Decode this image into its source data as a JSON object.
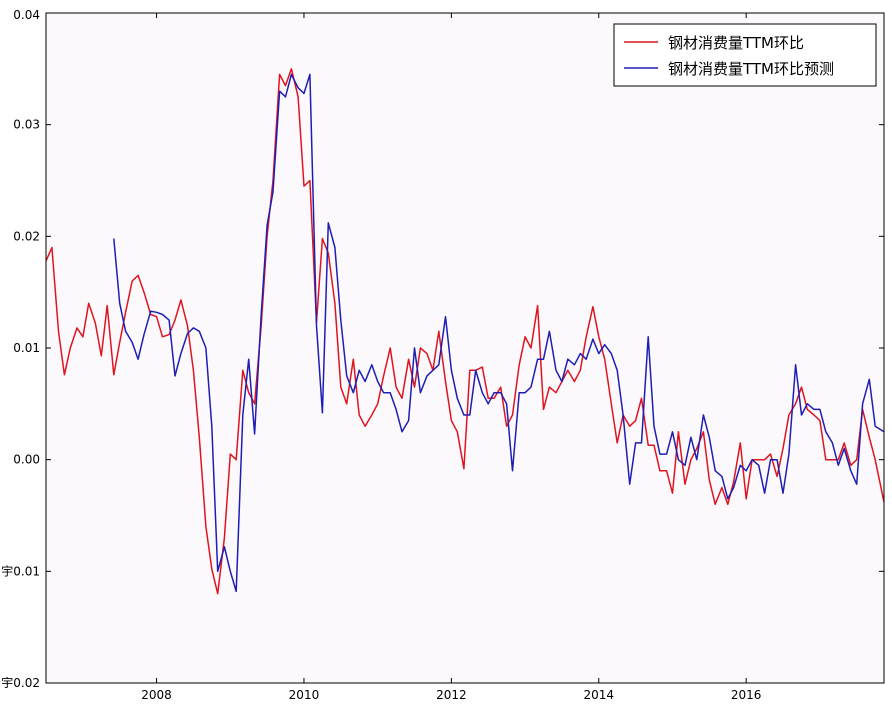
{
  "chart_data": {
    "type": "line",
    "title": "",
    "xlabel": "",
    "ylabel": "",
    "xlim": [
      2006.5,
      2017.87
    ],
    "ylim": [
      -0.02,
      0.04
    ],
    "xticks": [
      2008,
      2010,
      2012,
      2014,
      2016
    ],
    "xtick_labels": [
      "2008",
      "2010",
      "2012",
      "2014",
      "2016"
    ],
    "yticks": [
      0.04,
      0.03,
      0.02,
      0.01,
      0.0,
      -0.01,
      -0.02
    ],
    "ytick_labels": [
      "0.04",
      "0.03",
      "0.02",
      "0.01",
      "0.00",
      "宇0.01",
      "宇0.02"
    ],
    "legend_position": "top-right",
    "grid": false,
    "colors": {
      "actual": "#e0141e",
      "predicted": "#1e1eb4",
      "frame": "#000000",
      "plot_background": "#fbf9fc"
    },
    "series": [
      {
        "name": "钢材消费量TTM环比",
        "color": "#e0141e",
        "x": [
          2006.5,
          2006.58,
          2006.67,
          2006.75,
          2006.83,
          2006.92,
          2007.0,
          2007.08,
          2007.17,
          2007.25,
          2007.33,
          2007.42,
          2007.5,
          2007.58,
          2007.67,
          2007.75,
          2007.83,
          2007.92,
          2008.0,
          2008.08,
          2008.17,
          2008.25,
          2008.33,
          2008.42,
          2008.5,
          2008.58,
          2008.67,
          2008.75,
          2008.83,
          2008.92,
          2009.0,
          2009.08,
          2009.17,
          2009.25,
          2009.33,
          2009.42,
          2009.5,
          2009.58,
          2009.67,
          2009.75,
          2009.83,
          2009.92,
          2010.0,
          2010.08,
          2010.17,
          2010.25,
          2010.33,
          2010.42,
          2010.5,
          2010.58,
          2010.67,
          2010.75,
          2010.83,
          2010.92,
          2011.0,
          2011.08,
          2011.17,
          2011.25,
          2011.33,
          2011.42,
          2011.5,
          2011.58,
          2011.67,
          2011.75,
          2011.83,
          2011.92,
          2012.0,
          2012.08,
          2012.17,
          2012.25,
          2012.33,
          2012.42,
          2012.5,
          2012.58,
          2012.67,
          2012.75,
          2012.83,
          2012.92,
          2013.0,
          2013.08,
          2013.17,
          2013.25,
          2013.33,
          2013.42,
          2013.5,
          2013.58,
          2013.67,
          2013.75,
          2013.83,
          2013.92,
          2014.0,
          2014.08,
          2014.17,
          2014.25,
          2014.33,
          2014.42,
          2014.5,
          2014.58,
          2014.67,
          2014.75,
          2014.83,
          2014.92,
          2015.0,
          2015.08,
          2015.17,
          2015.25,
          2015.33,
          2015.42,
          2015.5,
          2015.58,
          2015.67,
          2015.75,
          2015.83,
          2015.92,
          2016.0,
          2016.08,
          2016.17,
          2016.25,
          2016.33,
          2016.42,
          2016.5,
          2016.58,
          2016.67,
          2016.75,
          2016.83,
          2016.92,
          2017.0,
          2017.08,
          2017.17,
          2017.25,
          2017.33,
          2017.42,
          2017.5,
          2017.58,
          2017.67,
          2017.75,
          2017.87
        ],
        "y": [
          0.0178,
          0.019,
          0.0115,
          0.0076,
          0.01,
          0.0118,
          0.011,
          0.014,
          0.0122,
          0.0093,
          0.0138,
          0.0076,
          0.0105,
          0.0132,
          0.016,
          0.0165,
          0.015,
          0.013,
          0.0128,
          0.011,
          0.0112,
          0.0125,
          0.0143,
          0.012,
          0.008,
          0.002,
          -0.006,
          -0.0098,
          -0.012,
          -0.007,
          0.0005,
          0.0,
          0.008,
          0.006,
          0.005,
          0.012,
          0.02,
          0.025,
          0.0345,
          0.0335,
          0.035,
          0.0325,
          0.0245,
          0.025,
          0.0123,
          0.0198,
          0.0185,
          0.014,
          0.0065,
          0.005,
          0.009,
          0.004,
          0.003,
          0.004,
          0.005,
          0.0075,
          0.01,
          0.0065,
          0.0055,
          0.009,
          0.0065,
          0.01,
          0.0095,
          0.008,
          0.0115,
          0.007,
          0.0035,
          0.0025,
          -0.0008,
          0.008,
          0.008,
          0.0083,
          0.0055,
          0.0055,
          0.0065,
          0.003,
          0.004,
          0.0085,
          0.011,
          0.01,
          0.0138,
          0.0045,
          0.0065,
          0.006,
          0.007,
          0.008,
          0.007,
          0.008,
          0.011,
          0.0137,
          0.011,
          0.009,
          0.005,
          0.0015,
          0.004,
          0.003,
          0.0035,
          0.0055,
          0.0013,
          0.0013,
          -0.001,
          -0.001,
          -0.003,
          0.0025,
          -0.0022,
          0.0,
          0.001,
          0.0025,
          -0.0018,
          -0.004,
          -0.0025,
          -0.004,
          -0.002,
          0.0015,
          -0.0035,
          0.0,
          0.0,
          0.0,
          0.0005,
          -0.0015,
          0.001,
          0.004,
          0.005,
          0.0065,
          0.0045,
          0.004,
          0.0035,
          0.0,
          0.0,
          0.0,
          0.0015,
          -0.0005,
          0.0,
          0.0045,
          0.002,
          0.0,
          -0.0038
        ]
      },
      {
        "name": "钢材消费量TTM环比预测",
        "color": "#1e1eb4",
        "x": [
          2007.42,
          2007.5,
          2007.58,
          2007.67,
          2007.75,
          2007.83,
          2007.92,
          2008.0,
          2008.08,
          2008.17,
          2008.25,
          2008.33,
          2008.42,
          2008.5,
          2008.58,
          2008.67,
          2008.75,
          2008.83,
          2008.92,
          2009.0,
          2009.08,
          2009.17,
          2009.25,
          2009.33,
          2009.42,
          2009.5,
          2009.58,
          2009.67,
          2009.75,
          2009.83,
          2009.92,
          2010.0,
          2010.08,
          2010.17,
          2010.25,
          2010.33,
          2010.42,
          2010.5,
          2010.58,
          2010.67,
          2010.75,
          2010.83,
          2010.92,
          2011.0,
          2011.08,
          2011.17,
          2011.25,
          2011.33,
          2011.42,
          2011.5,
          2011.58,
          2011.67,
          2011.75,
          2011.83,
          2011.92,
          2012.0,
          2012.08,
          2012.17,
          2012.25,
          2012.33,
          2012.42,
          2012.5,
          2012.58,
          2012.67,
          2012.75,
          2012.83,
          2012.92,
          2013.0,
          2013.08,
          2013.17,
          2013.25,
          2013.33,
          2013.42,
          2013.5,
          2013.58,
          2013.67,
          2013.75,
          2013.83,
          2013.92,
          2014.0,
          2014.08,
          2014.17,
          2014.25,
          2014.33,
          2014.42,
          2014.5,
          2014.58,
          2014.67,
          2014.75,
          2014.83,
          2014.92,
          2015.0,
          2015.08,
          2015.17,
          2015.25,
          2015.33,
          2015.42,
          2015.5,
          2015.58,
          2015.67,
          2015.75,
          2015.83,
          2015.92,
          2016.0,
          2016.08,
          2016.17,
          2016.25,
          2016.33,
          2016.42,
          2016.5,
          2016.58,
          2016.67,
          2016.75,
          2016.83,
          2016.92,
          2017.0,
          2017.08,
          2017.17,
          2017.25,
          2017.33,
          2017.42,
          2017.5,
          2017.58,
          2017.67,
          2017.75,
          2017.87
        ],
        "y": [
          0.0198,
          0.014,
          0.0115,
          0.0105,
          0.009,
          0.0112,
          0.0133,
          0.0132,
          0.013,
          0.0125,
          0.0075,
          0.0095,
          0.0113,
          0.0118,
          0.0115,
          0.01,
          0.003,
          -0.01,
          -0.0078,
          -0.01,
          -0.0118,
          0.004,
          0.009,
          0.0023,
          0.013,
          0.021,
          0.024,
          0.033,
          0.0325,
          0.0345,
          0.0333,
          0.0328,
          0.0345,
          0.012,
          0.0042,
          0.0212,
          0.019,
          0.0125,
          0.0075,
          0.006,
          0.008,
          0.007,
          0.0085,
          0.007,
          0.006,
          0.006,
          0.0045,
          0.0025,
          0.0035,
          0.01,
          0.006,
          0.0075,
          0.008,
          0.0085,
          0.0128,
          0.008,
          0.0055,
          0.004,
          0.004,
          0.008,
          0.006,
          0.005,
          0.006,
          0.006,
          0.005,
          -0.001,
          0.006,
          0.006,
          0.0065,
          0.009,
          0.009,
          0.0115,
          0.008,
          0.007,
          0.009,
          0.0085,
          0.0095,
          0.009,
          0.0108,
          0.0095,
          0.0103,
          0.0095,
          0.008,
          0.004,
          -0.0022,
          0.0015,
          0.0015,
          0.011,
          0.003,
          0.0005,
          0.0005,
          0.0025,
          0.0,
          -0.0005,
          0.002,
          0.0,
          0.004,
          0.002,
          -0.001,
          -0.0015,
          -0.0035,
          -0.0025,
          -0.0005,
          -0.001,
          0.0,
          -0.0005,
          -0.003,
          0.0,
          0.0,
          -0.003,
          0.0005,
          0.0085,
          0.004,
          0.005,
          0.0045,
          0.0045,
          0.0025,
          0.0015,
          -0.0005,
          0.001,
          -0.001,
          -0.0022,
          0.005,
          0.0072,
          0.003,
          0.0025
        ]
      }
    ]
  }
}
